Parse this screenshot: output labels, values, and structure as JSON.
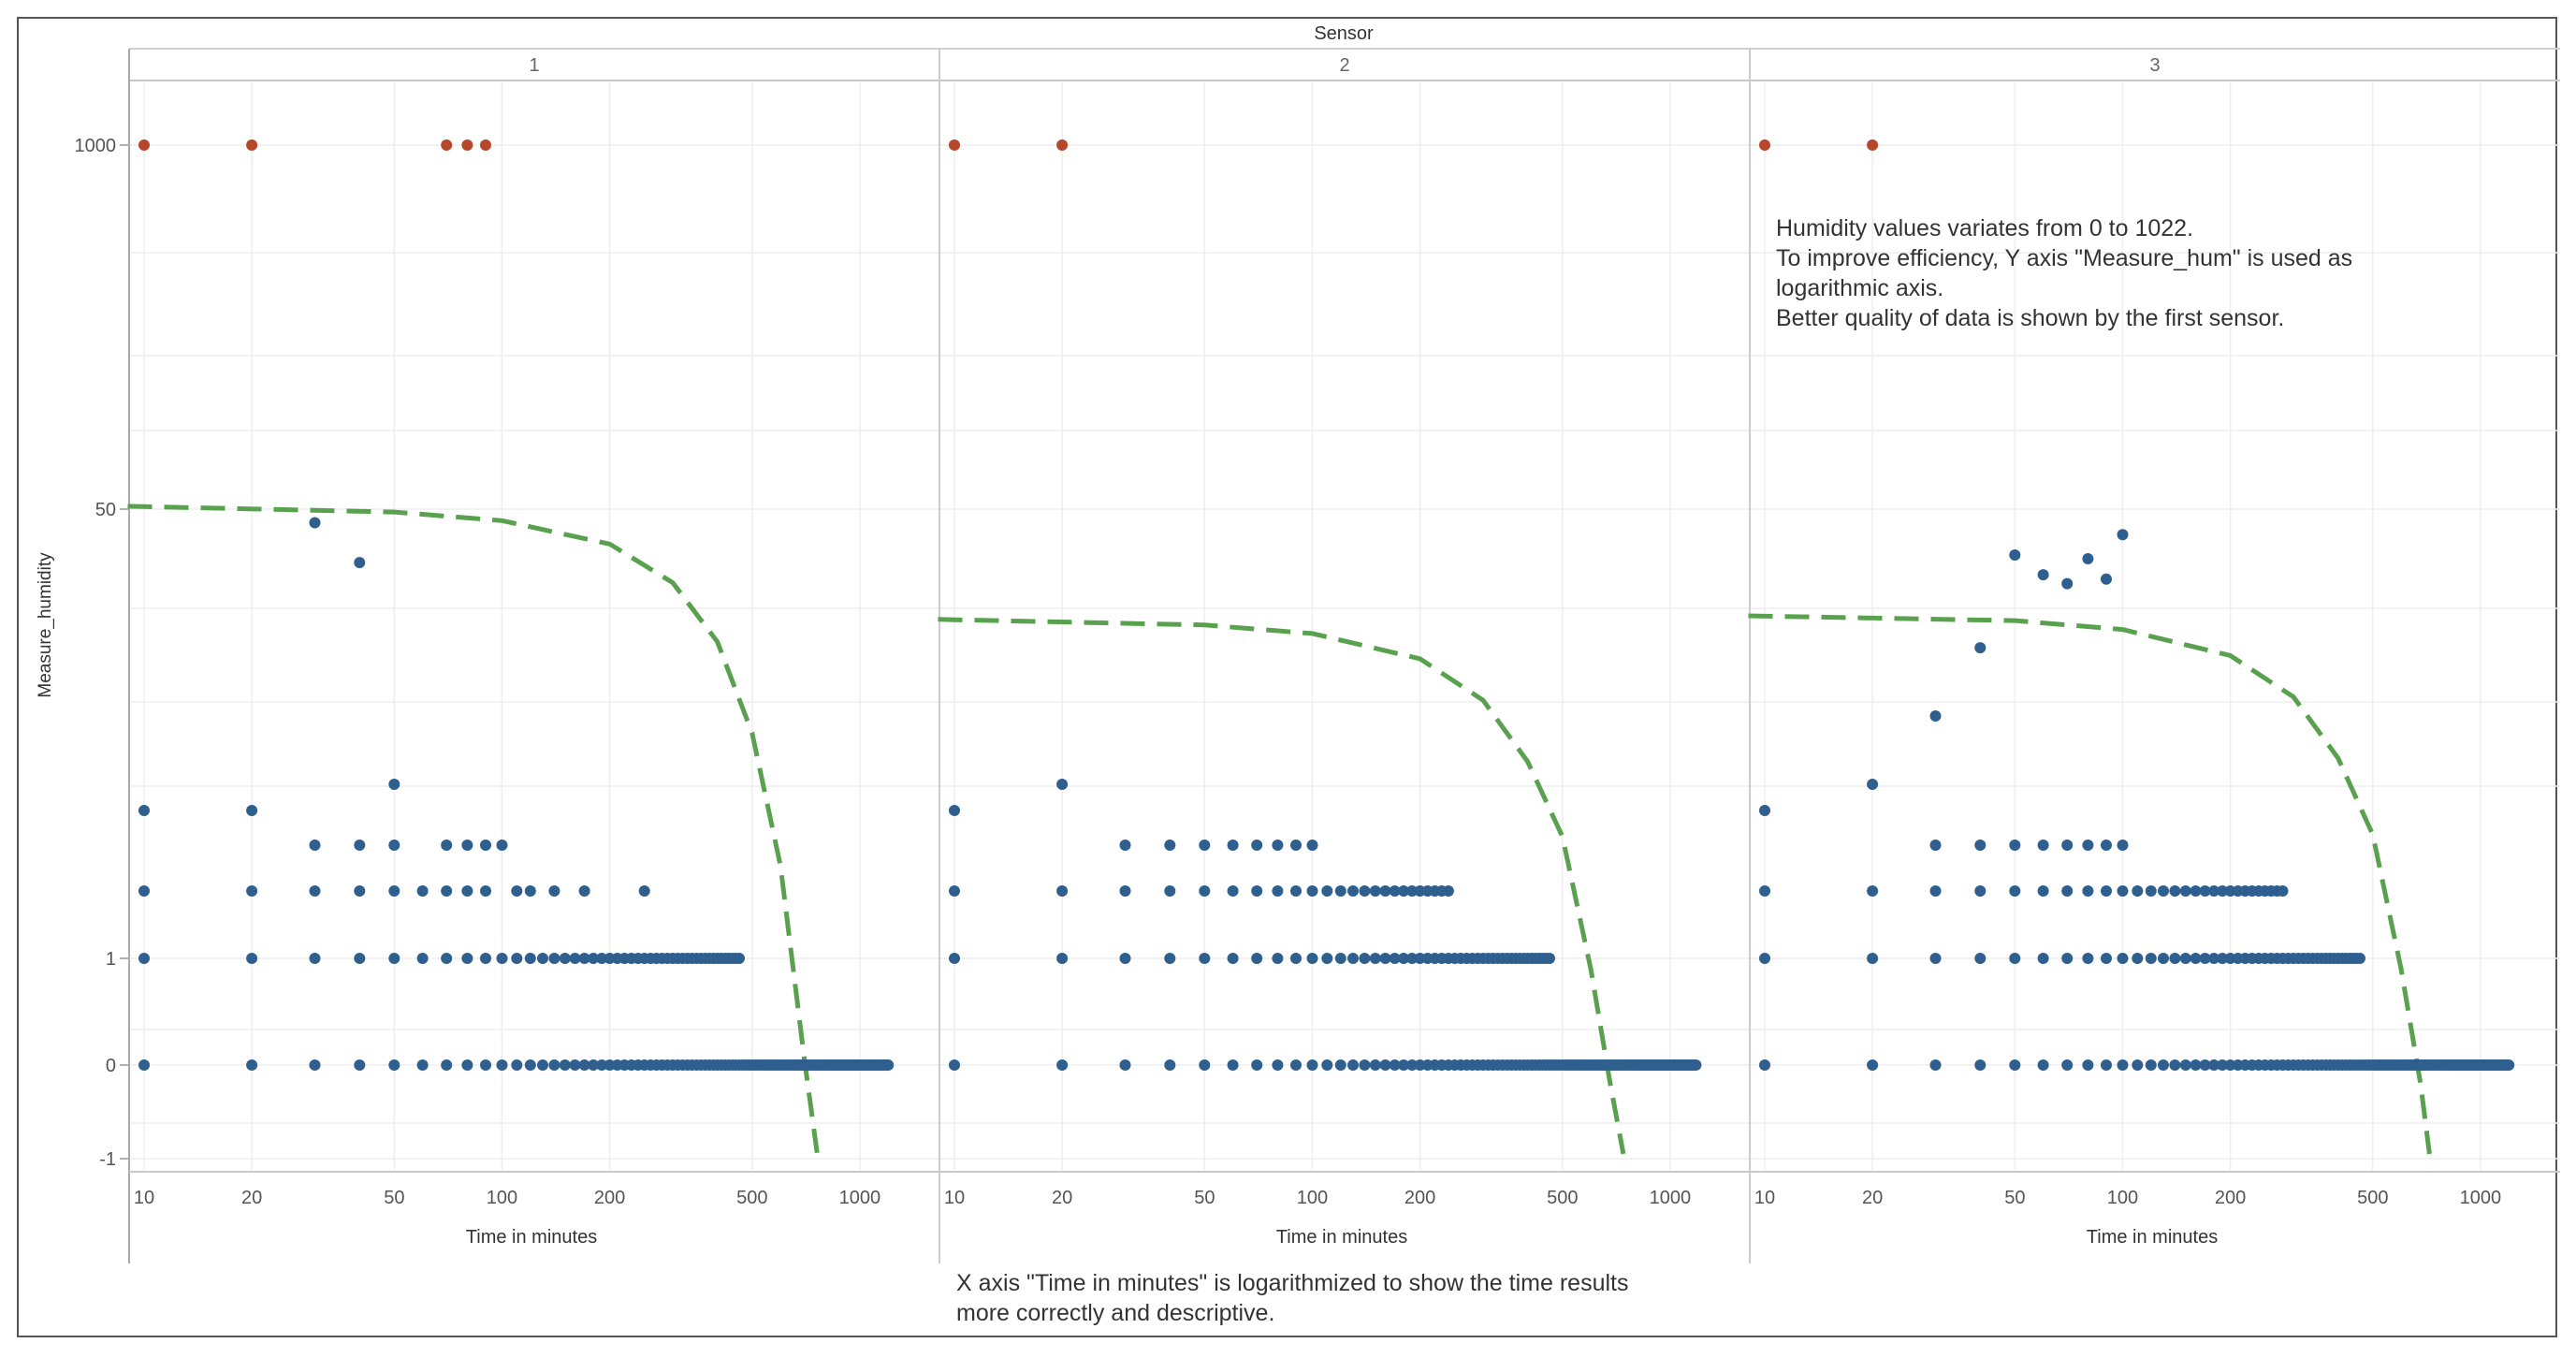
{
  "chart_data": {
    "type": "scatter",
    "title": "Sensor",
    "xlabel": "Time in minutes",
    "ylabel": "Measure_humidity",
    "x_scale": "log",
    "y_scale": "log",
    "xlim": [
      9,
      1400
    ],
    "x_ticks": [
      10,
      20,
      50,
      100,
      200,
      500,
      1000
    ],
    "x_tick_labels": [
      "10",
      "20",
      "50",
      "100",
      "200",
      "500",
      "1000"
    ],
    "y_tick_labels": [
      "1000",
      "50",
      "1",
      "0",
      "-1"
    ],
    "colors": {
      "normal": "#2e5f8e",
      "outlier": "#b5472b",
      "trend": "#59a14f"
    },
    "panels": [
      {
        "header": "1",
        "outliers": {
          "value": 1000,
          "x": [
            10,
            20,
            70,
            80,
            90
          ]
        },
        "levels": [
          {
            "value": 0,
            "x": [
              10,
              20,
              30,
              40,
              50,
              60,
              70,
              80,
              90,
              100
            ],
            "step_from": 110,
            "step": 10,
            "step_to": 1200
          },
          {
            "value": 1,
            "x": [
              10,
              20,
              30,
              40,
              50,
              60,
              70,
              80,
              90,
              100
            ],
            "step_from": 110,
            "step": 10,
            "step_to": 460
          },
          {
            "value": 2,
            "x": [
              10,
              20,
              30,
              40,
              50,
              60,
              70,
              80,
              90,
              110,
              120,
              140,
              170,
              250
            ]
          },
          {
            "value": 3,
            "x": [
              30,
              40,
              50,
              70,
              80,
              90,
              100
            ]
          },
          {
            "value": 5,
            "x": [
              10,
              20
            ]
          },
          {
            "value": 6,
            "x": [
              50
            ]
          },
          {
            "value": 45,
            "x": [
              30
            ]
          },
          {
            "value": 33,
            "x": [
              40
            ]
          }
        ],
        "trend": [
          [
            9,
            51.2
          ],
          [
            50,
            48.9
          ],
          [
            100,
            45.7
          ],
          [
            200,
            38.1
          ],
          [
            300,
            28.2
          ],
          [
            400,
            17.8
          ],
          [
            500,
            8.8
          ],
          [
            600,
            2.5
          ],
          [
            700,
            0.05
          ],
          [
            760,
            -0.95
          ]
        ]
      },
      {
        "header": "2",
        "outliers": {
          "value": 1000,
          "x": [
            10,
            20
          ]
        },
        "levels": [
          {
            "value": 0,
            "x": [
              10,
              20,
              30,
              40,
              50,
              60,
              70,
              80,
              90,
              100
            ],
            "step_from": 110,
            "step": 10,
            "step_to": 1180
          },
          {
            "value": 1,
            "x": [
              10,
              20,
              30,
              40,
              50,
              60,
              70,
              80,
              90,
              100
            ],
            "step_from": 110,
            "step": 10,
            "step_to": 460
          },
          {
            "value": 2,
            "x": [
              10,
              20,
              30,
              40,
              50,
              60,
              70,
              80,
              90,
              100
            ],
            "step_from": 110,
            "step": 10,
            "step_to": 240
          },
          {
            "value": 3,
            "x": [
              30,
              40,
              50,
              60,
              70,
              80,
              90,
              100
            ]
          },
          {
            "value": 5,
            "x": [
              10
            ]
          },
          {
            "value": 6,
            "x": [
              20
            ]
          }
        ],
        "trend": [
          [
            9,
            21.2
          ],
          [
            50,
            20.3
          ],
          [
            100,
            19.0
          ],
          [
            200,
            15.6
          ],
          [
            300,
            11.3
          ],
          [
            400,
            7.1
          ],
          [
            500,
            3.4
          ],
          [
            600,
            0.9
          ],
          [
            680,
            -0.2
          ],
          [
            740,
            -0.95
          ]
        ]
      },
      {
        "header": "3",
        "outliers": {
          "value": 1000,
          "x": [
            10,
            20
          ]
        },
        "levels": [
          {
            "value": 0,
            "x": [
              10,
              20,
              30,
              40,
              50,
              60,
              70,
              80,
              90,
              100
            ],
            "step_from": 110,
            "step": 10,
            "step_to": 1200
          },
          {
            "value": 1,
            "x": [
              10,
              20,
              30,
              40,
              50,
              60,
              70,
              80,
              90,
              100
            ],
            "step_from": 110,
            "step": 10,
            "step_to": 460
          },
          {
            "value": 2,
            "x": [
              10,
              20,
              30,
              40,
              50,
              60,
              70,
              80,
              90,
              100
            ],
            "step_from": 110,
            "step": 10,
            "step_to": 280
          },
          {
            "value": 3,
            "x": [
              30,
              40,
              50,
              60,
              70,
              80,
              90,
              100
            ]
          },
          {
            "value": 5,
            "x": [
              10
            ]
          },
          {
            "value": 6,
            "x": [
              20
            ]
          },
          {
            "value": 10,
            "x": [
              30
            ]
          },
          {
            "value": 17,
            "x": [
              40
            ]
          },
          {
            "value": 35,
            "x": [
              50
            ]
          },
          {
            "value": 30,
            "x": [
              60
            ]
          },
          {
            "value": 28,
            "x": [
              70
            ]
          },
          {
            "value": 34,
            "x": [
              80
            ]
          },
          {
            "value": 29,
            "x": [
              90
            ]
          },
          {
            "value": 41,
            "x": [
              100
            ]
          }
        ],
        "trend": [
          [
            9,
            21.8
          ],
          [
            50,
            21.0
          ],
          [
            100,
            19.6
          ],
          [
            200,
            16.0
          ],
          [
            300,
            11.6
          ],
          [
            400,
            7.3
          ],
          [
            500,
            3.5
          ],
          [
            600,
            0.9
          ],
          [
            680,
            -0.2
          ],
          [
            720,
            -0.95
          ]
        ]
      }
    ]
  },
  "notes": {
    "humidity": [
      "Humidity values variates  from 0 to 1022.",
      "To improve  efficiency, Y axis \"Measure_hum\" is used as",
      "logarithmic axis.",
      "Better quality of data is shown by the first sensor."
    ],
    "time": [
      "X axis \"Time in minutes\" is logarithmized to show the time results",
      "more correctly and descriptive."
    ]
  }
}
